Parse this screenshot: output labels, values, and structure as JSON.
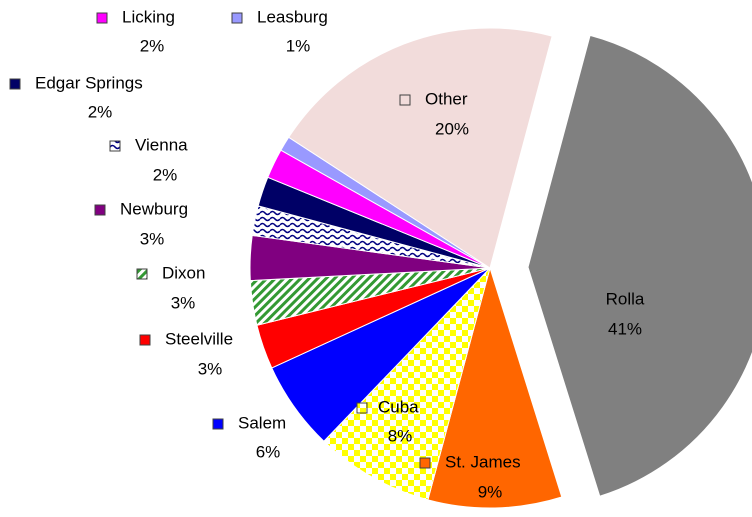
{
  "chart_data": {
    "type": "pie",
    "categories": [
      "Rolla",
      "St. James",
      "Cuba",
      "Salem",
      "Steelville",
      "Dixon",
      "Newburg",
      "Vienna",
      "Edgar Springs",
      "Licking",
      "Leasburg",
      "Other"
    ],
    "values": [
      41,
      9,
      8,
      6,
      3,
      3,
      3,
      2,
      2,
      2,
      1,
      20
    ],
    "value_labels": [
      "41%",
      "9%",
      "8%",
      "6%",
      "3%",
      "3%",
      "3%",
      "2%",
      "2%",
      "2%",
      "1%",
      "20%"
    ],
    "colors": [
      "#808080",
      "#ff6600",
      "#ffff00",
      "#0000ff",
      "#ff0000",
      "#339933",
      "#800080",
      "#000080",
      "#000066",
      "#ff00ff",
      "#9999ff",
      "#f2dcdb"
    ]
  }
}
